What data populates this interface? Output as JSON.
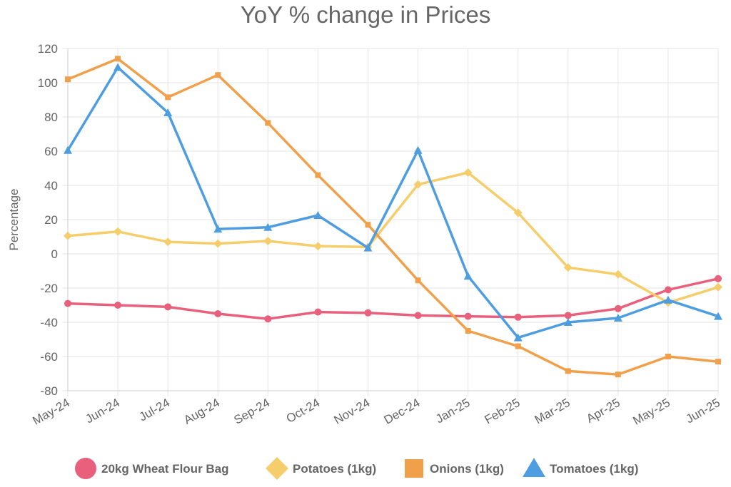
{
  "chart_data": {
    "type": "line",
    "title": "YoY % change in Prices",
    "xlabel": "",
    "ylabel": "Percentage",
    "ylim": [
      -80,
      120
    ],
    "yticks": [
      120,
      100,
      80,
      60,
      40,
      20,
      0,
      -20,
      -40,
      -60,
      -80
    ],
    "grid": true,
    "legend_position": "bottom",
    "categories": [
      "May-24",
      "Jun-24",
      "Jul-24",
      "Aug-24",
      "Sep-24",
      "Oct-24",
      "Nov-24",
      "Dec-24",
      "Jan-25",
      "Feb-25",
      "Mar-25",
      "Apr-25",
      "May-25",
      "Jun-25"
    ],
    "series": [
      {
        "name": "20kg Wheat Flour Bag",
        "color": "#e8607b",
        "marker": "circle",
        "values": [
          -29,
          -30,
          -31,
          -35,
          -38,
          -34,
          -34.5,
          -36,
          -36.5,
          -37,
          -36,
          -32,
          -21,
          -14.5
        ]
      },
      {
        "name": "Potatoes (1kg)",
        "color": "#f5cd6a",
        "marker": "diamond",
        "values": [
          10.5,
          13,
          7,
          6,
          7.5,
          4.5,
          4,
          40.5,
          47.5,
          24,
          -8,
          -12,
          -28.5,
          -19.5
        ]
      },
      {
        "name": "Onions (1kg)",
        "color": "#f0a04b",
        "marker": "square",
        "values": [
          102,
          114,
          91.5,
          104.5,
          76.5,
          46,
          17,
          -15.5,
          -45,
          -54,
          -68.5,
          -70.5,
          -60,
          -63
        ]
      },
      {
        "name": "Tomatoes (1kg)",
        "color": "#4e9de0",
        "marker": "triangle",
        "values": [
          60.5,
          109,
          82.5,
          14.5,
          15.5,
          22.5,
          3.5,
          60.5,
          -13,
          -49,
          -40,
          -37.5,
          -27,
          -36.5
        ]
      }
    ]
  }
}
